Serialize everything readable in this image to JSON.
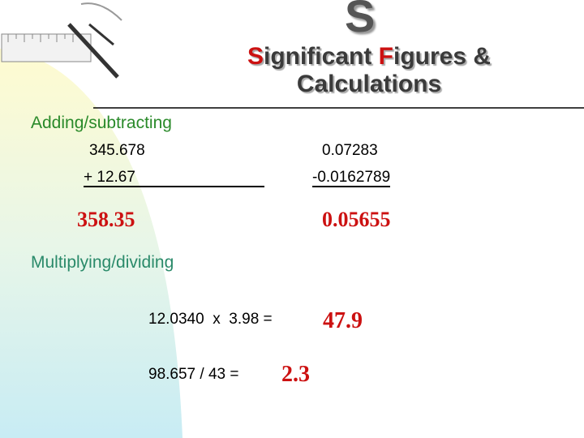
{
  "header": {
    "logo_letter": "S",
    "title_line1": [
      {
        "text": "S",
        "accent": true
      },
      {
        "text": "ignificant ",
        "accent": false
      },
      {
        "text": "F",
        "accent": true
      },
      {
        "text": "igures &",
        "accent": false
      }
    ],
    "title_line2": "Calculations"
  },
  "adding": {
    "heading": "Adding/subtracting",
    "problems": [
      {
        "a": "345.678",
        "b": "+ 12.67",
        "result": "358.35"
      },
      {
        "a": "0.07283",
        "b": "-0.0162789",
        "result": "0.05655"
      }
    ]
  },
  "multiplying": {
    "heading": "Multiplying/dividing",
    "problems": [
      {
        "expr": "12.0340  x  3.98 =",
        "result": "47.9"
      },
      {
        "expr": "98.657 / 43 =",
        "result": "2.3"
      }
    ]
  }
}
